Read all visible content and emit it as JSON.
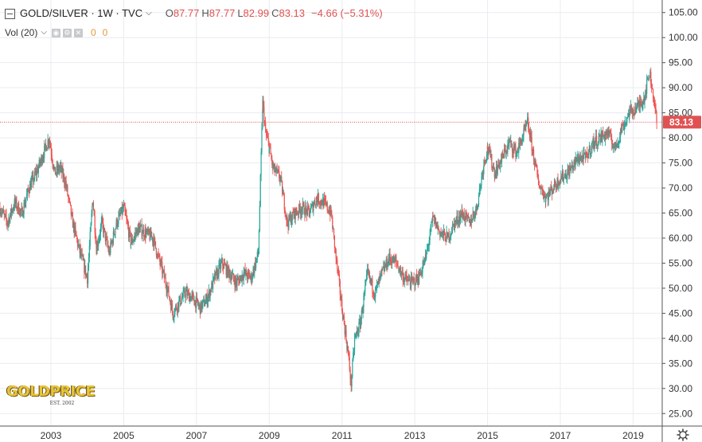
{
  "legend": {
    "symbol": "GOLD/SILVER · 1W · TVC",
    "open_label": "O",
    "open": "87.77",
    "high_label": "H",
    "high": "87.77",
    "low_label": "L",
    "low": "82.99",
    "close_label": "C",
    "close": "83.13",
    "change": "−4.66 (−5.31%)"
  },
  "volume": {
    "label": "Vol (20)",
    "value1": "0",
    "value2": "0"
  },
  "logo": {
    "text": "GOLDPRICE",
    "subtext": "EST. 2002"
  },
  "last_price_label": "83.13",
  "icons": [
    "collapse-icon",
    "chevron-down-icon",
    "eye-icon",
    "gear-icon",
    "close-icon",
    "settings-gear-icon"
  ],
  "colors": {
    "up": "#26a69a",
    "down": "#ef5350",
    "price_line": "#e05252",
    "grid": "#e9ecef"
  },
  "chart_data": {
    "type": "line",
    "title": "GOLD/SILVER · 1W · TVC",
    "xlabel": "",
    "ylabel": "",
    "x_ticks": [
      "2003",
      "2005",
      "2007",
      "2009",
      "2011",
      "2013",
      "2015",
      "2017",
      "2019"
    ],
    "y_ticks": [
      "25.00",
      "30.00",
      "35.00",
      "40.00",
      "45.00",
      "50.00",
      "55.00",
      "60.00",
      "65.00",
      "70.00",
      "75.00",
      "80.00",
      "85.00",
      "90.00",
      "95.00",
      "100.00",
      "105.00"
    ],
    "xlim": [
      2001.6,
      2019.8
    ],
    "ylim": [
      22.5,
      107.5
    ],
    "series": [
      {
        "x": [
          2001.6,
          2001.8,
          2002.0,
          2002.2,
          2002.4,
          2002.6,
          2002.8,
          2002.95,
          2003.1,
          2003.25,
          2003.4,
          2003.6,
          2003.8,
          2004.0,
          2004.15,
          2004.25,
          2004.4,
          2004.6,
          2004.8,
          2005.0,
          2005.2,
          2005.4,
          2005.6,
          2005.8,
          2006.0,
          2006.2,
          2006.35,
          2006.5,
          2006.7,
          2006.9,
          2007.1,
          2007.3,
          2007.5,
          2007.7,
          2007.9,
          2008.1,
          2008.3,
          2008.5,
          2008.7,
          2008.82,
          2008.9,
          2009.0,
          2009.1,
          2009.3,
          2009.5,
          2009.7,
          2009.9,
          2010.1,
          2010.3,
          2010.5,
          2010.7,
          2010.85,
          2011.0,
          2011.15,
          2011.25,
          2011.35,
          2011.5,
          2011.7,
          2011.9,
          2012.1,
          2012.3,
          2012.5,
          2012.7,
          2012.9,
          2013.1,
          2013.3,
          2013.5,
          2013.7,
          2013.9,
          2014.1,
          2014.3,
          2014.5,
          2014.7,
          2014.9,
          2015.0,
          2015.2,
          2015.4,
          2015.6,
          2015.8,
          2016.0,
          2016.1,
          2016.25,
          2016.4,
          2016.6,
          2016.8,
          2017.0,
          2017.2,
          2017.4,
          2017.5,
          2017.7,
          2017.9,
          2018.1,
          2018.3,
          2018.5,
          2018.7,
          2018.9,
          2019.1,
          2019.3,
          2019.45,
          2019.55,
          2019.65
        ],
        "y": [
          66,
          63,
          67,
          65,
          70,
          73,
          77,
          80,
          73,
          74,
          71,
          63,
          57,
          52,
          68,
          58,
          63,
          57,
          63,
          66,
          59,
          62,
          61,
          60,
          55,
          50,
          45,
          47,
          49,
          48,
          46,
          48,
          52,
          55,
          53,
          51,
          53,
          52,
          57,
          87,
          81,
          78,
          74,
          72,
          63,
          65,
          66,
          65,
          68,
          67,
          65,
          55,
          46,
          38,
          31,
          40,
          43,
          53,
          49,
          53,
          56,
          55,
          52,
          51,
          52,
          56,
          64,
          61,
          60,
          63,
          65,
          63,
          66,
          75,
          78,
          73,
          76,
          79,
          77,
          81,
          83,
          77,
          71,
          68,
          70,
          72,
          73,
          75,
          76,
          76,
          79,
          80,
          81,
          78,
          82,
          85,
          86,
          88,
          93,
          89,
          83
        ]
      }
    ]
  }
}
